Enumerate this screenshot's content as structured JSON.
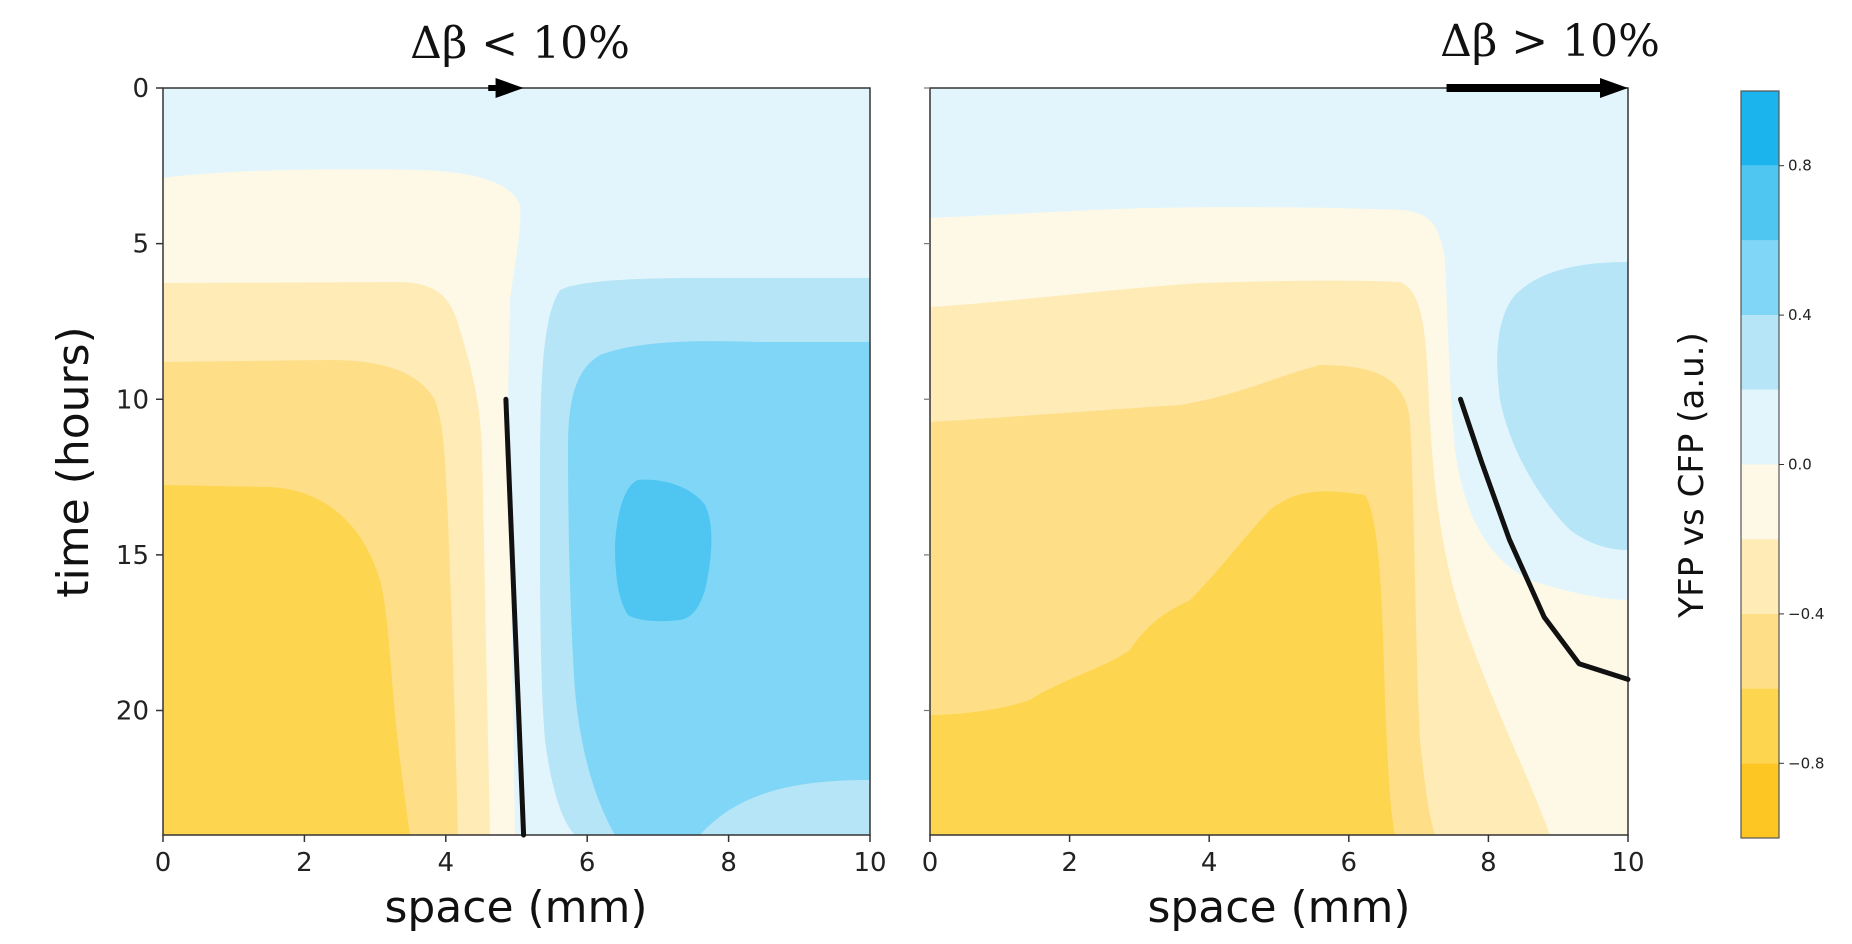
{
  "chart_data": [
    {
      "type": "heatmap",
      "title": "Δβ < 10%",
      "xlabel": "space (mm)",
      "ylabel": "time (hours)",
      "xlim": [
        0,
        10
      ],
      "ylim": [
        24,
        0
      ],
      "x_ticks": [
        "0",
        "2",
        "4",
        "6",
        "8",
        "10"
      ],
      "y_ticks": [
        "0",
        "5",
        "10",
        "15",
        "20"
      ],
      "front_line": [
        [
          4.85,
          10
        ],
        [
          5.1,
          24
        ]
      ],
      "arrow": {
        "x_start": 4.6,
        "x_end": 5.1,
        "y": 0
      }
    },
    {
      "type": "heatmap",
      "title": "Δβ > 10%",
      "xlabel": "space (mm)",
      "ylabel": "",
      "xlim": [
        0,
        10
      ],
      "ylim": [
        24,
        0
      ],
      "x_ticks": [
        "0",
        "2",
        "4",
        "6",
        "8",
        "10"
      ],
      "y_ticks": [],
      "front_line": [
        [
          7.6,
          10
        ],
        [
          7.9,
          12
        ],
        [
          8.3,
          14.5
        ],
        [
          8.8,
          17
        ],
        [
          9.3,
          18.5
        ],
        [
          10,
          19
        ]
      ],
      "arrow": {
        "x_start": 7.4,
        "x_end": 10,
        "y": 0
      }
    }
  ],
  "colorbar": {
    "label": "YFP vs CFP (a.u.)",
    "range": [
      -1.0,
      1.0
    ],
    "ticks": [
      "0.8",
      "0.4",
      "0.0",
      "−0.4",
      "−0.8"
    ],
    "levels": [
      {
        "from": 0.8,
        "to": 1.0,
        "color": "#1bb4ec"
      },
      {
        "from": 0.6,
        "to": 0.8,
        "color": "#4ec6f1"
      },
      {
        "from": 0.4,
        "to": 0.6,
        "color": "#80d6f6"
      },
      {
        "from": 0.2,
        "to": 0.4,
        "color": "#b5e5f7"
      },
      {
        "from": 0.0,
        "to": 0.2,
        "color": "#e3f5fc"
      },
      {
        "from": -0.2,
        "to": 0.0,
        "color": "#fef9e6"
      },
      {
        "from": -0.4,
        "to": -0.2,
        "color": "#feebb6"
      },
      {
        "from": -0.6,
        "to": -0.4,
        "color": "#fedf87"
      },
      {
        "from": -0.8,
        "to": -0.6,
        "color": "#fed54f"
      },
      {
        "from": -1.0,
        "to": -0.8,
        "color": "#fec623"
      }
    ]
  }
}
